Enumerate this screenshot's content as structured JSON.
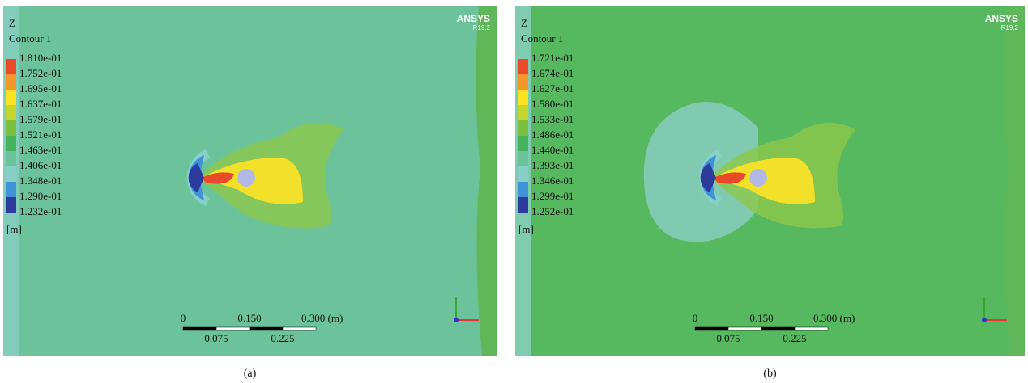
{
  "panels": [
    {
      "caption": "(a)",
      "variable": "Z",
      "contour": "Contour 1",
      "levels": [
        "1.810e-01",
        "1.752e-01",
        "1.695e-01",
        "1.637e-01",
        "1.579e-01",
        "1.521e-01",
        "1.463e-01",
        "1.406e-01",
        "1.348e-01",
        "1.290e-01",
        "1.232e-01"
      ],
      "unit": "[m]",
      "logo": "ANSYS",
      "version": "R19.2",
      "scale": {
        "top": [
          "0",
          "0.150",
          "0.300 (m)"
        ],
        "bottom": [
          "0.075",
          "0.225"
        ]
      }
    },
    {
      "caption": "(b)",
      "variable": "Z",
      "contour": "Contour 1",
      "levels": [
        "1.721e-01",
        "1.674e-01",
        "1.627e-01",
        "1.580e-01",
        "1.533e-01",
        "1.486e-01",
        "1.440e-01",
        "1.393e-01",
        "1.346e-01",
        "1.299e-01",
        "1.252e-01"
      ],
      "unit": "[m]",
      "logo": "ANSYS",
      "version": "R19.2",
      "scale": {
        "top": [
          "0",
          "0.150",
          "0.300 (m)"
        ],
        "bottom": [
          "0.075",
          "0.225"
        ]
      }
    }
  ]
}
